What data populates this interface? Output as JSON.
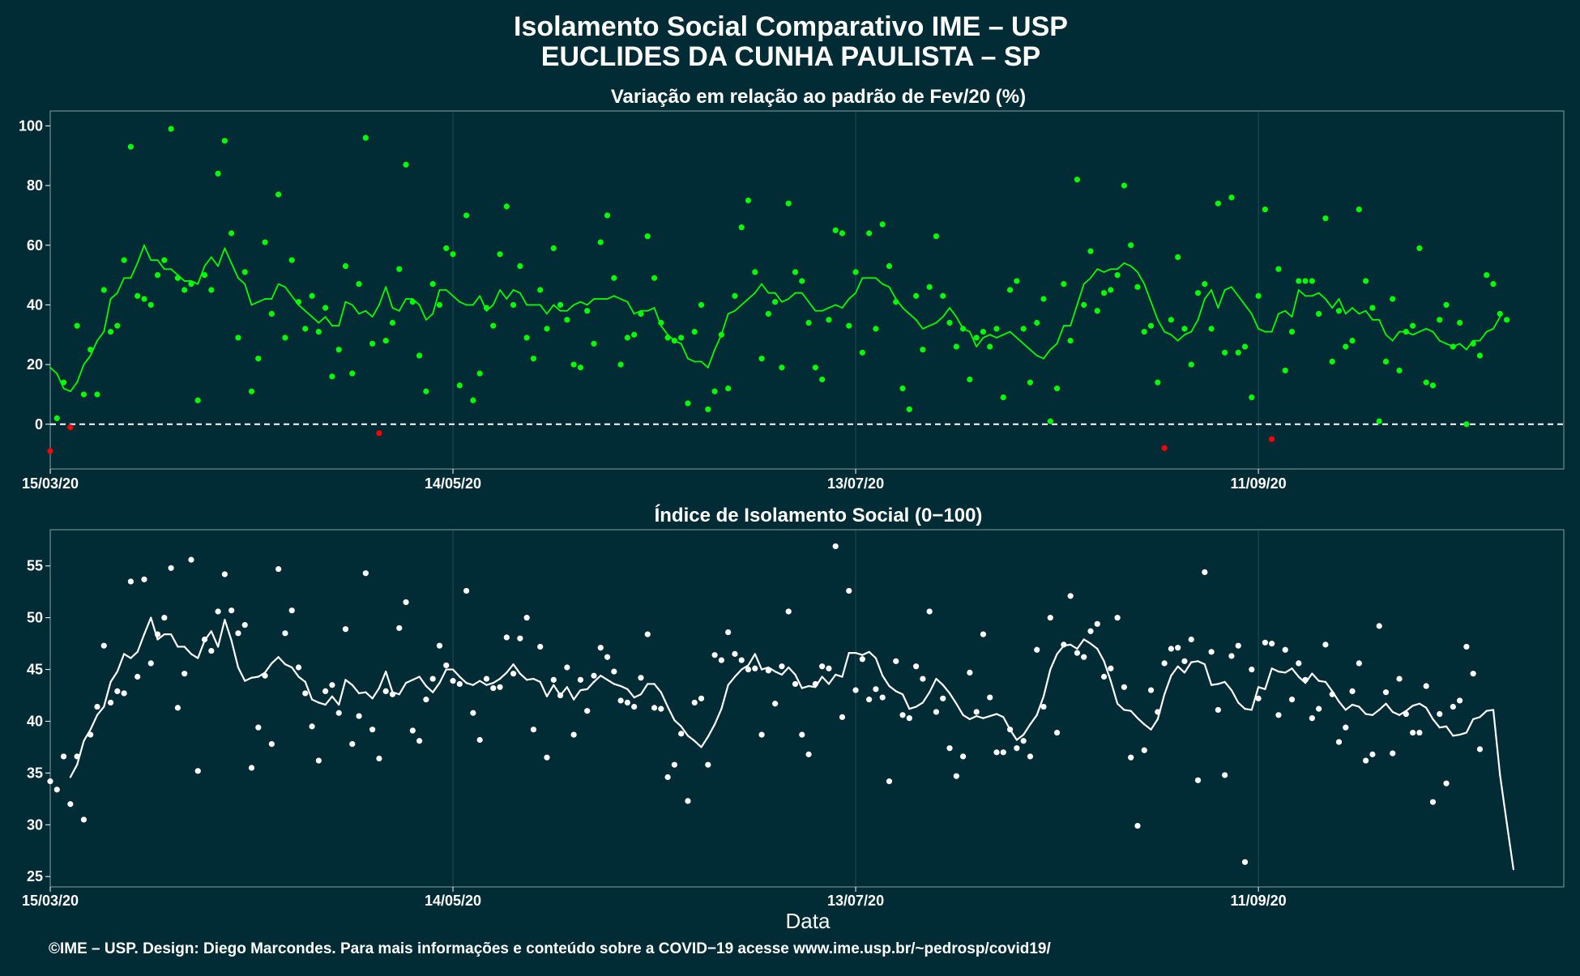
{
  "title_line1": "Isolamento Social Comparativo IME – USP",
  "title_line2": "EUCLIDES DA CUNHA PAULISTA – SP",
  "xlabel": "Data",
  "credit": "©IME – USP. Design: Diego Marcondes. Para mais informações e conteúdo sobre a COVID−19 acesse www.ime.usp.br/~pedrosp/covid19/",
  "colors": {
    "background": "#012b35",
    "positive": "#00ff00",
    "negative": "#ff0000",
    "index": "#ffffff",
    "panel_border": "#6f8a91",
    "grid": "#1c4753"
  },
  "chart_data": [
    {
      "type": "scatter",
      "title": "Variação em relação ao padrão de Fev/20 (%)",
      "x_start": "15/03/20",
      "x_range_days": [
        0,
        225.5
      ],
      "x_ticks": [
        {
          "day": 0,
          "label": "15/03/20"
        },
        {
          "day": 60,
          "label": "14/05/20"
        },
        {
          "day": 120,
          "label": "13/07/20"
        },
        {
          "day": 180,
          "label": "11/09/20"
        }
      ],
      "ylim": [
        -15,
        105
      ],
      "y_ticks": [
        0,
        20,
        40,
        60,
        80,
        100
      ],
      "reference_line": 0,
      "series": [
        {
          "style": "points",
          "values": [
            -9,
            2,
            14,
            -1,
            33,
            10,
            25,
            10,
            45,
            31,
            33,
            55,
            93,
            43,
            42,
            40,
            50,
            55,
            99,
            49,
            45,
            47,
            8,
            50,
            45,
            84,
            95,
            64,
            29,
            51,
            11,
            22,
            61,
            37,
            77,
            29,
            55,
            41,
            32,
            43,
            31,
            39,
            16,
            25,
            53,
            17,
            47,
            96,
            27,
            -3,
            28,
            34,
            52,
            87,
            41,
            23,
            11,
            47,
            40,
            59,
            57,
            13,
            70,
            8,
            17,
            39,
            33,
            57,
            73,
            40,
            53,
            29,
            22,
            45,
            32,
            59,
            40,
            35,
            20,
            19,
            38,
            27,
            61,
            70,
            49,
            20,
            29,
            30,
            37,
            63,
            49,
            34,
            29,
            28,
            29,
            7,
            31,
            40,
            5,
            11,
            30,
            12,
            43,
            66,
            75,
            51,
            22,
            37,
            41,
            19,
            74,
            51,
            48,
            34,
            19,
            15,
            35,
            65,
            64,
            33,
            51,
            24,
            64,
            32,
            67,
            53,
            41,
            12,
            5,
            43,
            25,
            46,
            63,
            43,
            34,
            26,
            32,
            15,
            29,
            31,
            26,
            32,
            9,
            45,
            48,
            32,
            14,
            34,
            42,
            1,
            12,
            47,
            28,
            82,
            40,
            58,
            38,
            44,
            45,
            50,
            80,
            60,
            46,
            31,
            33,
            14,
            -8,
            35,
            56,
            32,
            20,
            44,
            47,
            32,
            74,
            24,
            76,
            24,
            26,
            9,
            43,
            72,
            -5,
            52,
            18,
            31,
            48,
            48,
            48,
            37,
            69,
            21,
            38,
            26,
            28,
            72,
            48,
            39,
            1,
            21,
            42,
            18,
            31,
            33,
            59,
            14,
            13,
            35,
            40,
            26,
            34,
            0,
            27,
            23,
            50,
            47,
            37,
            35
          ]
        },
        {
          "style": "line",
          "name": "média móvel",
          "values": [
            19,
            17,
            12,
            11,
            14,
            20,
            23,
            28,
            31,
            42,
            44,
            49,
            49,
            54,
            60,
            55,
            55,
            52,
            52,
            50,
            48,
            48,
            47,
            53,
            56,
            53,
            59,
            54,
            49,
            47,
            40,
            41,
            42,
            42,
            47,
            46,
            43,
            40,
            38,
            36,
            34,
            36,
            33,
            33,
            41,
            40,
            37,
            38,
            36,
            40,
            46,
            39,
            38,
            42,
            42,
            40,
            35,
            37,
            45,
            45,
            43,
            41,
            40,
            40,
            43,
            38,
            40,
            45,
            42,
            45,
            44,
            40,
            40,
            40,
            37,
            40,
            38,
            38,
            40,
            41,
            40,
            42,
            42,
            42,
            43,
            42,
            41,
            37,
            38,
            38,
            39,
            33,
            30,
            28,
            27,
            22,
            21,
            21,
            19,
            25,
            30,
            37,
            38,
            40,
            42,
            44,
            47,
            44,
            44,
            41,
            42,
            44,
            44,
            41,
            38,
            38,
            39,
            40,
            39,
            42,
            44,
            49,
            49,
            49,
            47,
            46,
            42,
            39,
            37,
            35,
            32,
            33,
            34,
            36,
            39,
            36,
            32,
            31,
            26,
            29,
            30,
            29,
            30,
            31,
            29,
            27,
            25,
            23,
            22,
            25,
            27,
            33,
            33,
            40,
            47,
            49,
            52,
            51,
            52,
            52,
            54,
            53,
            51,
            47,
            41,
            35,
            31,
            30,
            28,
            30,
            31,
            35,
            42,
            45,
            39,
            45,
            46,
            43,
            40,
            37,
            32,
            31,
            31,
            37,
            38,
            36,
            45,
            43,
            43,
            44,
            42,
            39,
            42,
            37,
            39,
            37,
            38,
            35,
            35,
            30,
            28,
            31,
            31,
            30,
            31,
            32,
            31,
            28,
            27,
            26,
            27,
            25,
            28,
            28,
            31,
            32,
            36
          ]
        }
      ]
    },
    {
      "type": "scatter",
      "title": "Índice de Isolamento Social (0−100)",
      "x_start": "15/03/20",
      "x_range_days": [
        0,
        225.5
      ],
      "x_ticks": [
        {
          "day": 0,
          "label": "15/03/20"
        },
        {
          "day": 60,
          "label": "14/05/20"
        },
        {
          "day": 120,
          "label": "13/07/20"
        },
        {
          "day": 180,
          "label": "11/09/20"
        }
      ],
      "ylim": [
        24,
        58.5
      ],
      "y_ticks": [
        25,
        30,
        35,
        40,
        45,
        50,
        55
      ],
      "series": [
        {
          "style": "points",
          "values": [
            34.2,
            33.4,
            36.6,
            32,
            36.6,
            30.5,
            38.7,
            41.4,
            47.3,
            41.8,
            42.9,
            42.7,
            53.5,
            44.3,
            53.7,
            45.6,
            48.4,
            50,
            54.8,
            41.3,
            44.6,
            55.6,
            35.2,
            47.9,
            46.8,
            50.6,
            54.2,
            50.7,
            48.5,
            49.3,
            35.5,
            39.4,
            44.4,
            37.8,
            54.7,
            48.5,
            50.7,
            45.2,
            42.7,
            39.5,
            36.2,
            42.9,
            43.5,
            40.8,
            48.9,
            37.8,
            40.5,
            54.3,
            39.2,
            36.4,
            42.9,
            42.6,
            49,
            51.5,
            39.1,
            38.1,
            42.1,
            44.1,
            47.3,
            45.4,
            43.9,
            43.6,
            52.6,
            40.8,
            38.2,
            44.1,
            43.2,
            43.3,
            48.1,
            44.6,
            48,
            50,
            39.2,
            47.2,
            36.5,
            44,
            42.5,
            45.2,
            38.7,
            44,
            41,
            44.4,
            47.1,
            46.2,
            44.8,
            42,
            41.8,
            41.4,
            44.2,
            48.4,
            41.3,
            41.2,
            34.6,
            35.8,
            38.8,
            32.3,
            41.8,
            42.2,
            35.8,
            46.4,
            45.9,
            48.6,
            46.5,
            45.9,
            45,
            45.1,
            38.7,
            44.9,
            41.7,
            45.3,
            50.6,
            43.6,
            38.7,
            36.8,
            43.6,
            45.3,
            45.1,
            56.9,
            40.4,
            52.6,
            43,
            46,
            42.1,
            43.1,
            42.3,
            34.2,
            45.8,
            40.6,
            40.3,
            45.3,
            44.1,
            50.6,
            40.9,
            42.2,
            37.4,
            34.7,
            36.6,
            44.7,
            40.9,
            48.4,
            42.3,
            37,
            37,
            39.2,
            37.4,
            38.1,
            36.6,
            46.9,
            41.4,
            50,
            38.9,
            47.4,
            52.1,
            46.6,
            46.2,
            48.7,
            49.4,
            44.3,
            45.1,
            50,
            43.3,
            36.5,
            29.9,
            37.2,
            43,
            40.9,
            45.6,
            47,
            47.1,
            45.8,
            47.9,
            34.3,
            54.4,
            46.7,
            41.1,
            34.8,
            46.3,
            47.3,
            26.4,
            45,
            42.2,
            47.6,
            47.5,
            40.6,
            46.9,
            42.1,
            45.6,
            44,
            40.3,
            41.2,
            47.4,
            42.6,
            38,
            39.4,
            42.9,
            45.6,
            36.2,
            36.8,
            49.2,
            42.8,
            36.9,
            44.1,
            40.7,
            38.9,
            38.9,
            43.4,
            32.2,
            40.7,
            34,
            41.4,
            42,
            47.2,
            44.6,
            37.3
          ]
        },
        {
          "style": "line",
          "name": "média móvel",
          "values": [
            null,
            null,
            null,
            34.6,
            35.8,
            38.1,
            39.2,
            40.6,
            41.4,
            43.8,
            44.8,
            46.5,
            46.1,
            46.7,
            48.4,
            50,
            47.9,
            48.4,
            48.4,
            47.2,
            47.2,
            46.5,
            46.1,
            47.8,
            48.7,
            47.2,
            49.8,
            47.8,
            45.2,
            43.9,
            44.2,
            44.3,
            44.7,
            45.6,
            46.2,
            45.5,
            45.2,
            44.3,
            43.8,
            42.1,
            41.8,
            41.6,
            42.4,
            41.6,
            44,
            43.5,
            42.7,
            42.8,
            42.2,
            43.2,
            44.8,
            42.8,
            42.6,
            43.7,
            44,
            44.3,
            43.4,
            42.8,
            43.7,
            45,
            45,
            44.3,
            43.7,
            43.5,
            43.9,
            43.5,
            43.7,
            44.1,
            44.7,
            45.5,
            44.6,
            44,
            44.1,
            43.8,
            42.4,
            43.5,
            42.5,
            43.3,
            42.1,
            43,
            43.1,
            43.8,
            44.4,
            44,
            43.6,
            43.4,
            43.1,
            42.3,
            42.6,
            43.6,
            43.6,
            42.8,
            41.4,
            40.1,
            39.5,
            38.6,
            38.1,
            37.5,
            38.5,
            39.7,
            41.2,
            43.5,
            44.3,
            45,
            45.4,
            46.5,
            45,
            45.2,
            44.8,
            44.5,
            45.2,
            44.5,
            43.2,
            43.4,
            43.3,
            44.3,
            43.6,
            44.5,
            44.3,
            46.6,
            46.6,
            46.4,
            46.7,
            46.1,
            44.4,
            43.4,
            42.9,
            42.6,
            41.2,
            41.4,
            41.8,
            42.8,
            44.1,
            43.5,
            42.7,
            41.7,
            40.6,
            40.2,
            40.5,
            40.3,
            40.5,
            40.7,
            40.4,
            39.2,
            38.2,
            38.7,
            39.7,
            40.6,
            42.4,
            45,
            46.5,
            47.3,
            47.4,
            47,
            47.9,
            47.5,
            47,
            45.8,
            43.9,
            41.7,
            41.1,
            41,
            40.3,
            39.7,
            39.2,
            40.2,
            42.6,
            44.4,
            45.3,
            44.7,
            45.7,
            45.8,
            45.5,
            43.5,
            43.6,
            43.8,
            43,
            41.8,
            41.2,
            41.1,
            43.3,
            43.1,
            45.1,
            44.8,
            44.7,
            45.1,
            44.3,
            43.7,
            44.6,
            43.9,
            43.8,
            42.9,
            41.9,
            41.1,
            41.6,
            41.4,
            40.7,
            40.6,
            41.1,
            41.7,
            40.9,
            40.6,
            41,
            41.5,
            41.7,
            41.3,
            40.2,
            39.4,
            39.5,
            38.6,
            38.7,
            38.9,
            40.2,
            40.4,
            41,
            41.1,
            34.8,
            30.2,
            25.7
          ]
        }
      ]
    }
  ]
}
